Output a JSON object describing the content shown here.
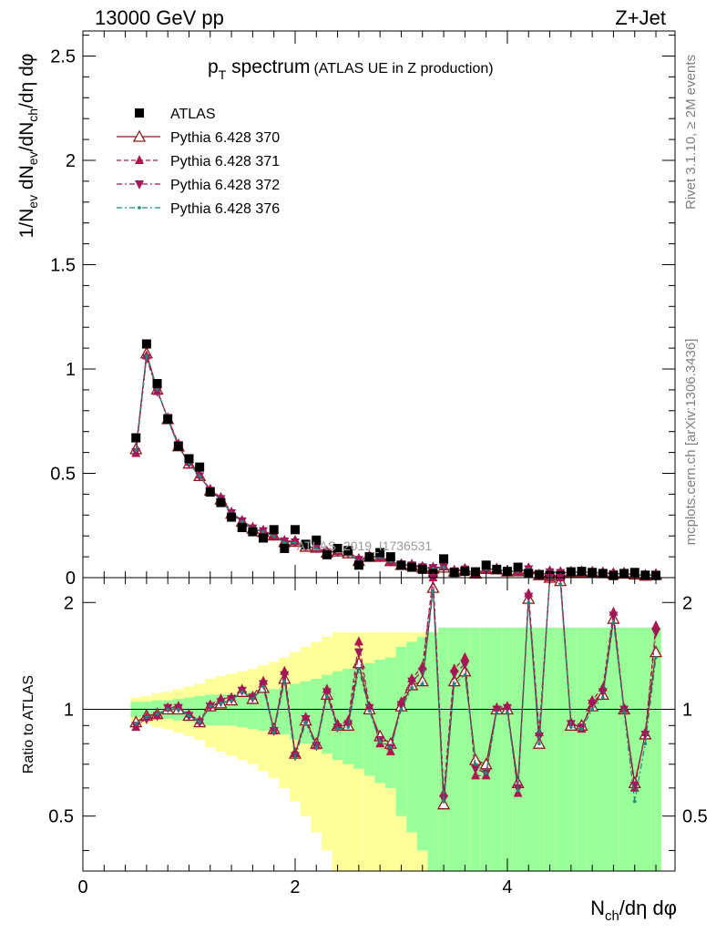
{
  "header": {
    "left": "13000 GeV pp",
    "right": "Z+Jet"
  },
  "title": {
    "main": "p",
    "main_sub": "T",
    "main_rest": " spectrum",
    "detail": "(ATLAS UE in Z production)"
  },
  "watermark": "ATLAS_2019_I1736531",
  "side_labels": {
    "rivet": "Rivet 3.1.10, ≥ 2M events",
    "mcplots": "mcplots.cern.ch [arXiv:1306.3436]"
  },
  "axes": {
    "ylabel_main": "1/N_ev dN_ev/dN_ch/dη dφ",
    "ylabel_ratio": "Ratio to ATLAS",
    "xlabel": "N_ch/dη dφ",
    "main_yticks": [
      "0",
      "0.5",
      "1",
      "1.5",
      "2",
      "2.5"
    ],
    "ratio_yticks": [
      "0.5",
      "1",
      "2"
    ],
    "xticks": [
      "0",
      "2",
      "4"
    ]
  },
  "legend": [
    {
      "label": "ATLAS",
      "color": "#000000",
      "marker": "square"
    },
    {
      "label": "Pythia 6.428 370",
      "color": "#8b1a1a",
      "marker": "open-triangle-up",
      "dash": "solid"
    },
    {
      "label": "Pythia 6.428 371",
      "color": "#b0164b",
      "marker": "filled-triangle-up",
      "dash": "dashed"
    },
    {
      "label": "Pythia 6.428 372",
      "color": "#a0185a",
      "marker": "filled-triangle-down",
      "dash": "dashdot"
    },
    {
      "label": "Pythia 6.428 376",
      "color": "#1a8a7a",
      "marker": "dot",
      "dash": "dashdot"
    }
  ],
  "chart_data": {
    "type": "line",
    "xlim": [
      0,
      5.58
    ],
    "ylim_main": [
      0,
      2.62
    ],
    "ylim_ratio": [
      0.35,
      2.35
    ],
    "ratio_scale": "log",
    "x": [
      0.5,
      0.6,
      0.7,
      0.8,
      0.9,
      1.0,
      1.1,
      1.2,
      1.3,
      1.4,
      1.5,
      1.6,
      1.7,
      1.8,
      1.9,
      2.0,
      2.1,
      2.2,
      2.3,
      2.4,
      2.5,
      2.6,
      2.7,
      2.8,
      2.9,
      3.0,
      3.1,
      3.2,
      3.3,
      3.4,
      3.5,
      3.6,
      3.7,
      3.8,
      3.9,
      4.0,
      4.1,
      4.2,
      4.3,
      4.4,
      4.5,
      4.6,
      4.7,
      4.8,
      4.9,
      5.0,
      5.1,
      5.2,
      5.3,
      5.4
    ],
    "atlas": [
      0.67,
      1.12,
      0.93,
      0.76,
      0.63,
      0.57,
      0.53,
      0.41,
      0.36,
      0.29,
      0.24,
      0.22,
      0.19,
      0.23,
      0.14,
      0.23,
      0.16,
      0.18,
      0.11,
      0.14,
      0.13,
      0.06,
      0.1,
      0.12,
      0.1,
      0.06,
      0.05,
      0.04,
      0.02,
      0.09,
      0.025,
      0.03,
      0.028,
      0.06,
      0.04,
      0.03,
      0.05,
      0.02,
      0.015,
      0.011,
      0.01,
      0.028,
      0.03,
      0.025,
      0.02,
      0.01,
      0.02,
      0.025,
      0.012,
      0.01
    ],
    "ratio_bands": {
      "inner_halfwidth": [
        0.05,
        0.05,
        0.06,
        0.06,
        0.07,
        0.08,
        0.09,
        0.1,
        0.1,
        0.1,
        0.11,
        0.12,
        0.13,
        0.14,
        0.15,
        0.18,
        0.2,
        0.22,
        0.25,
        0.28,
        0.3,
        0.32,
        0.35,
        0.38,
        0.4,
        0.5,
        0.55,
        0.6,
        0.65,
        0.7,
        0.7,
        0.7,
        0.7,
        0.7,
        0.7,
        0.7,
        0.7,
        0.7,
        0.7,
        0.7,
        0.7,
        0.7,
        0.7,
        0.7,
        0.7,
        0.7,
        0.7,
        0.7,
        0.7,
        0.7
      ],
      "outer_halfwidth": [
        0.08,
        0.09,
        0.11,
        0.12,
        0.14,
        0.16,
        0.18,
        0.22,
        0.24,
        0.26,
        0.28,
        0.3,
        0.33,
        0.36,
        0.4,
        0.45,
        0.5,
        0.55,
        0.6,
        0.65,
        0.65,
        0.65,
        0.65,
        0.65,
        0.65,
        0.65,
        0.65,
        0.65,
        0.65,
        0.65,
        0.65,
        0.65,
        0.65,
        0.65,
        0.65,
        0.65,
        0.65,
        0.65,
        0.65,
        0.65,
        0.65,
        0.65,
        0.65,
        0.65,
        0.65,
        0.65,
        0.65,
        0.65,
        0.65,
        0.65
      ]
    },
    "series": [
      {
        "name": "Pythia 6.428 370",
        "ratio": [
          0.92,
          0.96,
          0.97,
          1.0,
          1.0,
          0.96,
          0.92,
          1.02,
          1.04,
          1.06,
          1.12,
          1.07,
          1.15,
          0.88,
          1.22,
          0.75,
          0.93,
          0.8,
          1.1,
          0.9,
          0.9,
          1.35,
          1.0,
          0.84,
          0.8,
          1.02,
          1.17,
          1.2,
          2.2,
          0.54,
          1.2,
          1.28,
          0.72,
          0.7,
          1.0,
          1.0,
          0.62,
          2.05,
          0.8,
          2.45,
          2.3,
          0.9,
          0.9,
          1.02,
          1.1,
          1.8,
          1.0,
          0.62,
          0.85,
          1.45
        ]
      },
      {
        "name": "Pythia 6.428 371",
        "ratio": [
          0.89,
          0.95,
          0.96,
          1.01,
          1.02,
          0.97,
          0.93,
          1.03,
          1.07,
          1.08,
          1.14,
          1.09,
          1.2,
          0.87,
          1.28,
          0.75,
          0.95,
          0.79,
          1.14,
          0.9,
          0.93,
          1.55,
          1.02,
          0.8,
          0.76,
          1.05,
          1.22,
          1.32,
          2.45,
          0.58,
          1.3,
          1.4,
          0.65,
          0.65,
          1.01,
          1.02,
          0.58,
          2.12,
          0.86,
          2.5,
          2.45,
          0.92,
          0.88,
          1.06,
          1.15,
          1.88,
          1.0,
          0.6,
          0.86,
          1.72
        ]
      },
      {
        "name": "Pythia 6.428 372",
        "ratio": [
          0.9,
          0.94,
          0.96,
          1.01,
          1.01,
          0.96,
          0.92,
          1.02,
          1.05,
          1.07,
          1.13,
          1.08,
          1.18,
          0.87,
          1.25,
          0.74,
          0.94,
          0.79,
          1.12,
          0.89,
          0.91,
          1.45,
          1.01,
          0.82,
          0.78,
          1.03,
          1.2,
          1.28,
          2.38,
          0.56,
          1.26,
          1.34,
          0.68,
          0.66,
          1.0,
          1.01,
          0.6,
          2.08,
          0.84,
          2.48,
          2.38,
          0.91,
          0.89,
          1.04,
          1.12,
          1.84,
          1.0,
          0.61,
          0.85,
          1.65
        ]
      },
      {
        "name": "Pythia 6.428 376",
        "ratio": [
          0.91,
          0.95,
          0.97,
          1.0,
          1.0,
          0.96,
          0.92,
          1.02,
          1.04,
          1.06,
          1.12,
          1.07,
          1.16,
          0.86,
          1.2,
          0.73,
          0.92,
          0.78,
          1.09,
          0.88,
          0.89,
          1.3,
          0.99,
          0.81,
          0.78,
          1.0,
          1.15,
          1.18,
          2.15,
          0.55,
          1.18,
          1.25,
          0.7,
          0.66,
          0.98,
          0.98,
          0.59,
          2.0,
          0.8,
          2.4,
          2.25,
          0.89,
          0.88,
          1.0,
          1.08,
          1.76,
          0.98,
          0.55,
          0.8,
          1.4
        ]
      }
    ]
  }
}
